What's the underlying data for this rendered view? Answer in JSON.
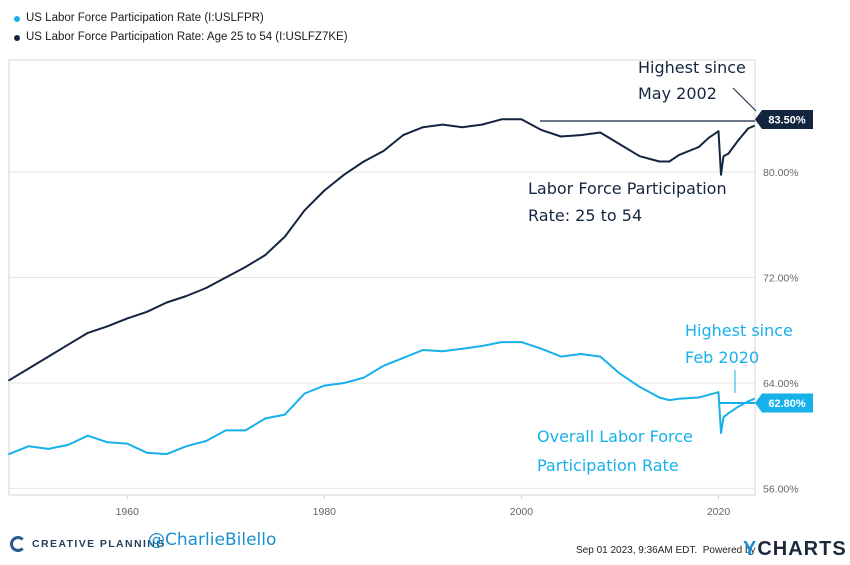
{
  "legend": [
    {
      "label": "US Labor Force Participation Rate (I:USLFPR)",
      "color": "#17b1ea"
    },
    {
      "label": "US Labor Force Participation Rate: Age 25 to 54 (I:USLFZ7KE)",
      "color": "#14253f"
    }
  ],
  "annotations": {
    "prime_highest_line1": "Highest since",
    "prime_highest_line2": "May 2002",
    "prime_label_line1": "Labor Force Participation",
    "prime_label_line2": "Rate: 25 to 54",
    "overall_highest_line1": "Highest since",
    "overall_highest_line2": "Feb 2020",
    "overall_label_line1": "Overall Labor Force",
    "overall_label_line2": "Participation Rate"
  },
  "badges": {
    "prime": "83.50%",
    "overall": "62.80%"
  },
  "chart_data": {
    "type": "line",
    "title": "",
    "xlabel": "",
    "ylabel": "",
    "x_ticks": [
      "1960",
      "1980",
      "2000",
      "2020"
    ],
    "y_ticks": [
      "56.00%",
      "64.00%",
      "72.00%",
      "80.00%"
    ],
    "xlim": [
      1948,
      2023.7
    ],
    "ylim": [
      55.5,
      88.5
    ],
    "grid": "horizontal",
    "series": [
      {
        "name": "US Labor Force Participation Rate: Age 25 to 54 (I:USLFZ7KE)",
        "color": "#14253f",
        "x": [
          1948,
          1950,
          1952,
          1954,
          1956,
          1958,
          1960,
          1962,
          1964,
          1966,
          1968,
          1970,
          1972,
          1974,
          1976,
          1978,
          1980,
          1982,
          1984,
          1986,
          1988,
          1990,
          1992,
          1994,
          1996,
          1998,
          2000,
          2002,
          2004,
          2006,
          2008,
          2010,
          2012,
          2014,
          2015,
          2016,
          2018,
          2019,
          2020,
          2020.25,
          2020.5,
          2021,
          2022,
          2023,
          2023.6
        ],
        "values": [
          64.2,
          65.1,
          66.0,
          66.9,
          67.8,
          68.3,
          68.9,
          69.4,
          70.1,
          70.6,
          71.2,
          72.0,
          72.8,
          73.7,
          75.1,
          77.1,
          78.6,
          79.8,
          80.8,
          81.6,
          82.8,
          83.4,
          83.6,
          83.4,
          83.6,
          84.0,
          84.0,
          83.2,
          82.7,
          82.8,
          83.0,
          82.1,
          81.2,
          80.8,
          80.8,
          81.3,
          81.9,
          82.6,
          83.1,
          79.8,
          81.2,
          81.4,
          82.4,
          83.3,
          83.5
        ]
      },
      {
        "name": "US Labor Force Participation Rate (I:USLFPR)",
        "color": "#17b1ea",
        "x": [
          1948,
          1950,
          1952,
          1954,
          1956,
          1958,
          1960,
          1962,
          1964,
          1966,
          1968,
          1970,
          1972,
          1974,
          1976,
          1978,
          1980,
          1982,
          1984,
          1986,
          1988,
          1990,
          1992,
          1994,
          1996,
          1998,
          2000,
          2002,
          2004,
          2006,
          2008,
          2010,
          2012,
          2014,
          2015,
          2016,
          2018,
          2019,
          2020,
          2020.25,
          2020.5,
          2021,
          2022,
          2023,
          2023.6
        ],
        "values": [
          58.6,
          59.2,
          59.0,
          59.3,
          60.0,
          59.5,
          59.4,
          58.7,
          58.6,
          59.2,
          59.6,
          60.4,
          60.4,
          61.3,
          61.6,
          63.2,
          63.8,
          64.0,
          64.4,
          65.3,
          65.9,
          66.5,
          66.4,
          66.6,
          66.8,
          67.1,
          67.1,
          66.6,
          66.0,
          66.2,
          66.0,
          64.7,
          63.7,
          62.9,
          62.7,
          62.8,
          62.9,
          63.1,
          63.3,
          60.2,
          61.4,
          61.7,
          62.2,
          62.6,
          62.8
        ]
      }
    ]
  }
}
